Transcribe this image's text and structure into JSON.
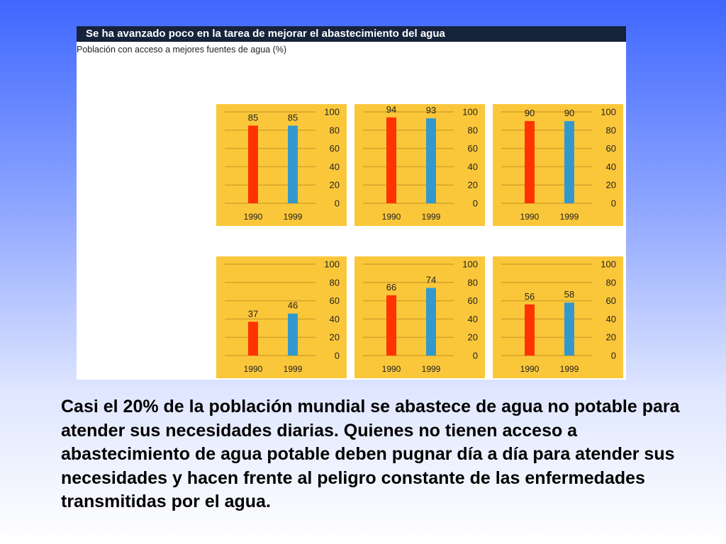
{
  "figure": {
    "title": "Se ha avanzado poco en la tarea de mejorar el abastecimiento del agua",
    "subtitle": "Población con acceso a mejores fuentes de agua (%)"
  },
  "colors": {
    "panel_bg": "#fbc73a",
    "gridline": "#d3a42a",
    "bar_1990": "#ff3300",
    "bar_1999": "#3399cc",
    "title_bar": "#15233b"
  },
  "chart_data": [
    {
      "type": "bar",
      "categories": [
        "1990",
        "1999"
      ],
      "values": [
        85,
        85
      ],
      "ylim": [
        0,
        100
      ],
      "yticks": [
        0,
        20,
        40,
        60,
        80,
        100
      ],
      "grid": true
    },
    {
      "type": "bar",
      "categories": [
        "1990",
        "1999"
      ],
      "values": [
        94,
        93
      ],
      "ylim": [
        0,
        100
      ],
      "yticks": [
        0,
        20,
        40,
        60,
        80,
        100
      ],
      "grid": true
    },
    {
      "type": "bar",
      "categories": [
        "1990",
        "1999"
      ],
      "values": [
        90,
        90
      ],
      "ylim": [
        0,
        100
      ],
      "yticks": [
        0,
        20,
        40,
        60,
        80,
        100
      ],
      "grid": true
    },
    {
      "type": "bar",
      "categories": [
        "1990",
        "1999"
      ],
      "values": [
        37,
        46
      ],
      "ylim": [
        0,
        100
      ],
      "yticks": [
        0,
        20,
        40,
        60,
        80,
        100
      ],
      "grid": true
    },
    {
      "type": "bar",
      "categories": [
        "1990",
        "1999"
      ],
      "values": [
        66,
        74
      ],
      "ylim": [
        0,
        100
      ],
      "yticks": [
        0,
        20,
        40,
        60,
        80,
        100
      ],
      "grid": true
    },
    {
      "type": "bar",
      "categories": [
        "1990",
        "1999"
      ],
      "values": [
        56,
        58
      ],
      "ylim": [
        0,
        100
      ],
      "yticks": [
        0,
        20,
        40,
        60,
        80,
        100
      ],
      "grid": true
    }
  ],
  "caption": "Casi el 20% de la población mundial se abastece de agua no potable para atender sus necesidades diarias. Quienes no tienen acceso a abastecimiento de agua potable deben pugnar día a día para atender sus necesidades y hacen frente al peligro constante de las enfermedades transmitidas por el agua."
}
